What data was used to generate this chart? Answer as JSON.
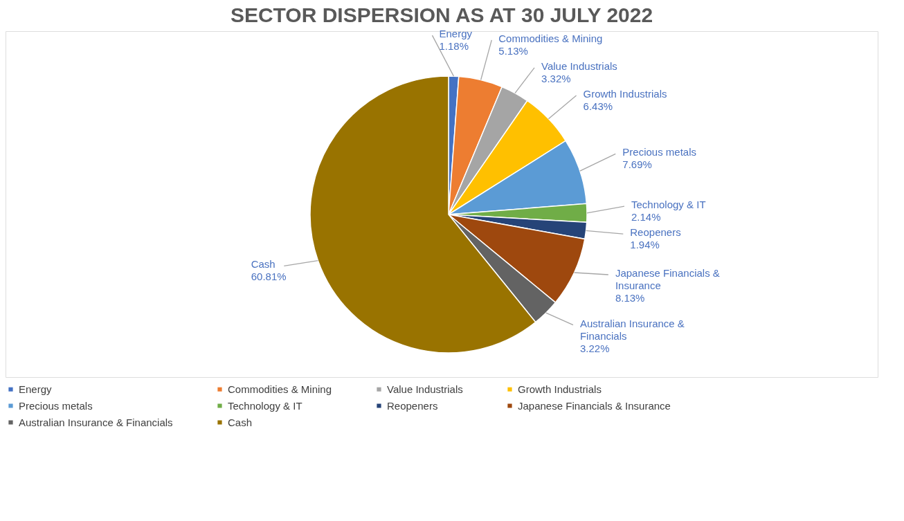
{
  "chart_data": {
    "type": "pie",
    "title": "SECTOR DISPERSION AS AT 30 JULY 2022",
    "categories": [
      "Energy",
      "Commodities & Mining",
      "Value Industrials",
      "Growth Industrials",
      "Precious metals",
      "Technology & IT",
      "Reopeners",
      "Japanese Financials & Insurance",
      "Australian Insurance & Financials",
      "Cash"
    ],
    "values": [
      1.18,
      5.13,
      3.32,
      6.43,
      7.69,
      2.14,
      1.94,
      8.13,
      3.22,
      60.81
    ],
    "value_labels": [
      "1.18%",
      "5.13%",
      "3.32%",
      "6.43%",
      "7.69%",
      "2.14%",
      "1.94%",
      "8.13%",
      "3.22%",
      "60.81%"
    ],
    "colors": [
      "#4472c4",
      "#ed7d31",
      "#a5a5a5",
      "#ffc000",
      "#5b9bd5",
      "#70ad47",
      "#264478",
      "#9e480e",
      "#636363",
      "#997300"
    ],
    "legend": "bottom"
  }
}
